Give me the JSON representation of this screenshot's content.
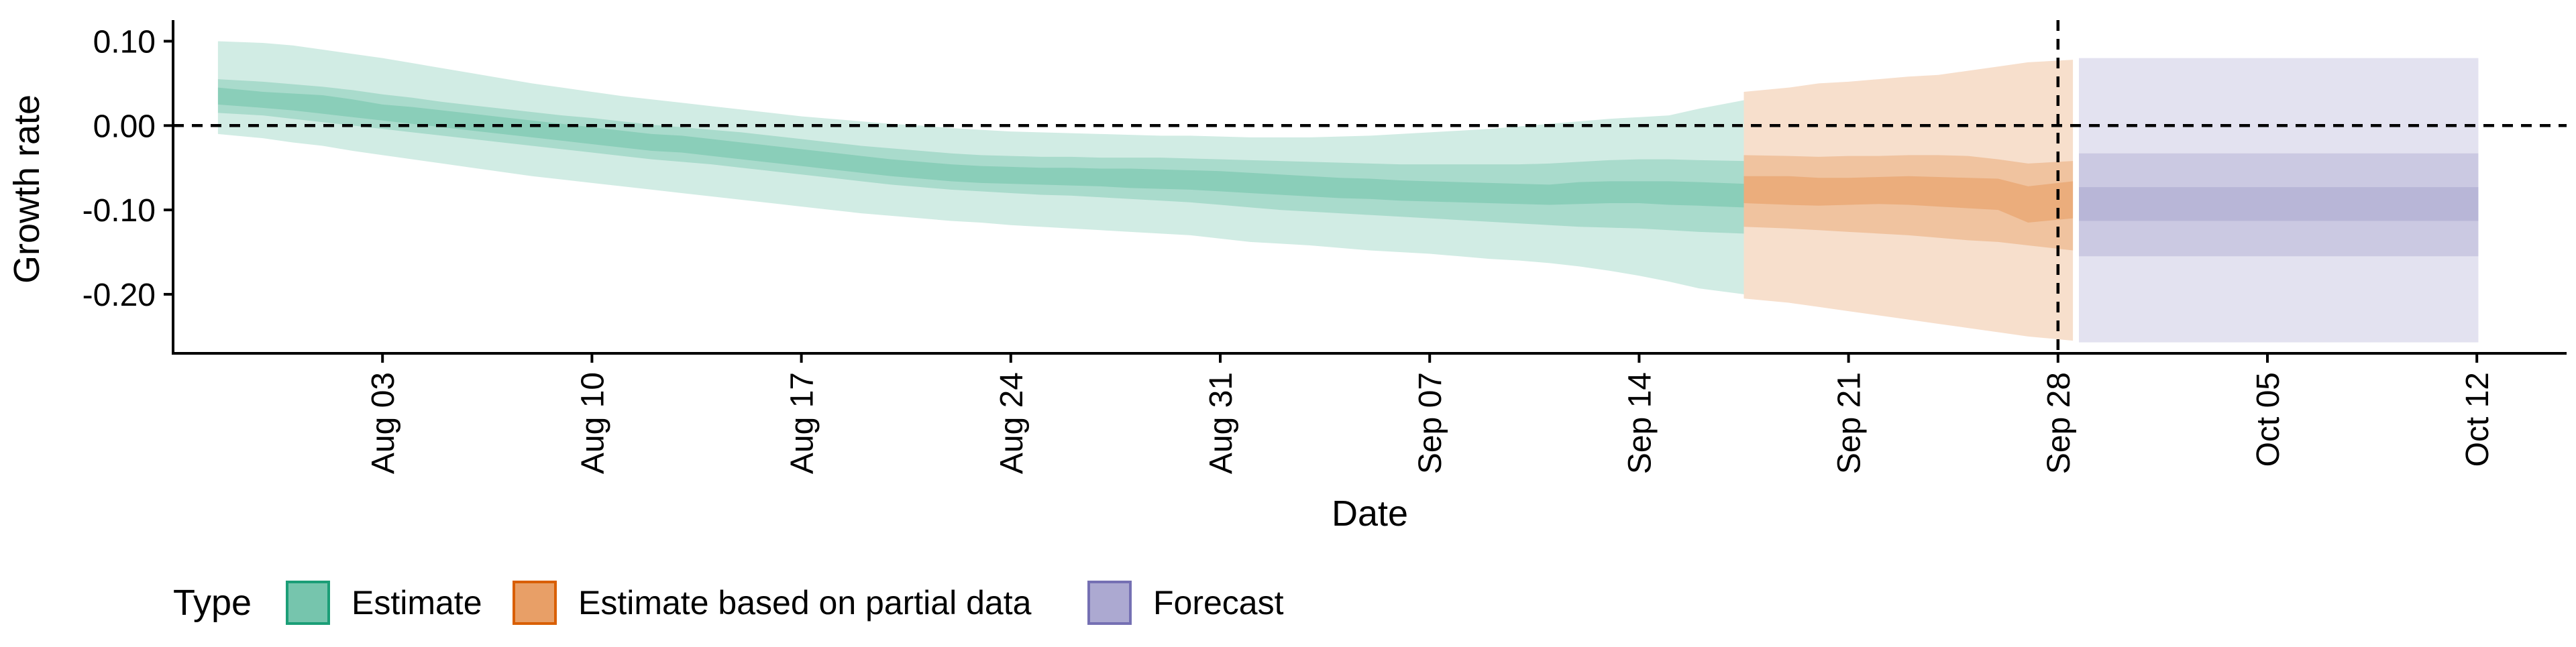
{
  "chart_data": {
    "type": "area",
    "title": "",
    "xlabel": "Date",
    "ylabel": "Growth rate",
    "x_ticks": [
      "2020-08-03",
      "2020-08-10",
      "2020-08-17",
      "2020-08-24",
      "2020-08-31",
      "2020-09-07",
      "2020-09-14",
      "2020-09-21",
      "2020-09-28",
      "2020-10-05",
      "2020-10-12"
    ],
    "x_tick_labels": [
      "Aug 03",
      "Aug 10",
      "Aug 17",
      "Aug 24",
      "Aug 31",
      "Sep 07",
      "Sep 14",
      "Sep 21",
      "Sep 28",
      "Oct 05",
      "Oct 12"
    ],
    "y_ticks": [
      0.1,
      0.0,
      -0.1,
      -0.2
    ],
    "y_tick_labels": [
      "0.10",
      "0.00",
      "-0.10",
      "-0.20"
    ],
    "xlim": [
      "2020-07-27",
      "2020-10-15"
    ],
    "ylim": [
      -0.27,
      0.125
    ],
    "reference_lines": [
      {
        "axis": "y",
        "value": 0.0,
        "style": "dashed"
      },
      {
        "axis": "x",
        "value": "2020-09-28",
        "style": "dashed"
      }
    ],
    "legend": {
      "title": "Type",
      "position": "bottom",
      "entries": [
        {
          "label": "Estimate",
          "color": "#1b9e77"
        },
        {
          "label": "Estimate based on partial data",
          "color": "#d95f02"
        },
        {
          "label": "Forecast",
          "color": "#7570b3"
        }
      ]
    },
    "grid": false,
    "series": [
      {
        "name": "Estimate",
        "color": "#1b9e77",
        "dates": [
          "2020-07-29",
          "2020-07-30",
          "2020-07-31",
          "2020-08-01",
          "2020-08-02",
          "2020-08-03",
          "2020-08-04",
          "2020-08-05",
          "2020-08-06",
          "2020-08-07",
          "2020-08-08",
          "2020-08-09",
          "2020-08-10",
          "2020-08-11",
          "2020-08-12",
          "2020-08-13",
          "2020-08-14",
          "2020-08-15",
          "2020-08-16",
          "2020-08-17",
          "2020-08-18",
          "2020-08-19",
          "2020-08-20",
          "2020-08-21",
          "2020-08-22",
          "2020-08-23",
          "2020-08-24",
          "2020-08-25",
          "2020-08-26",
          "2020-08-27",
          "2020-08-28",
          "2020-08-29",
          "2020-08-30",
          "2020-08-31",
          "2020-09-01",
          "2020-09-02",
          "2020-09-03",
          "2020-09-04",
          "2020-09-05",
          "2020-09-06",
          "2020-09-07",
          "2020-09-08",
          "2020-09-09",
          "2020-09-10",
          "2020-09-11",
          "2020-09-12",
          "2020-09-13",
          "2020-09-14",
          "2020-09-15",
          "2020-09-16",
          "2020-09-17"
        ],
        "median": [
          0.035,
          0.03,
          0.028,
          0.025,
          0.02,
          0.015,
          0.012,
          0.008,
          0.004,
          0.0,
          -0.004,
          -0.008,
          -0.012,
          -0.016,
          -0.02,
          -0.022,
          -0.026,
          -0.03,
          -0.034,
          -0.038,
          -0.042,
          -0.046,
          -0.05,
          -0.053,
          -0.056,
          -0.058,
          -0.059,
          -0.06,
          -0.06,
          -0.061,
          -0.062,
          -0.063,
          -0.064,
          -0.066,
          -0.068,
          -0.07,
          -0.072,
          -0.074,
          -0.075,
          -0.077,
          -0.078,
          -0.079,
          -0.08,
          -0.081,
          -0.082,
          -0.08,
          -0.079,
          -0.079,
          -0.08,
          -0.081,
          -0.083
        ],
        "lower_90": [
          -0.01,
          -0.015,
          -0.02,
          -0.024,
          -0.03,
          -0.035,
          -0.04,
          -0.045,
          -0.05,
          -0.055,
          -0.06,
          -0.064,
          -0.068,
          -0.072,
          -0.076,
          -0.08,
          -0.084,
          -0.088,
          -0.092,
          -0.096,
          -0.1,
          -0.104,
          -0.107,
          -0.11,
          -0.113,
          -0.115,
          -0.118,
          -0.12,
          -0.122,
          -0.124,
          -0.126,
          -0.128,
          -0.13,
          -0.134,
          -0.138,
          -0.14,
          -0.142,
          -0.145,
          -0.148,
          -0.15,
          -0.152,
          -0.155,
          -0.158,
          -0.16,
          -0.163,
          -0.167,
          -0.172,
          -0.178,
          -0.185,
          -0.193,
          -0.2
        ],
        "upper_90": [
          0.1,
          0.098,
          0.095,
          0.09,
          0.085,
          0.08,
          0.074,
          0.068,
          0.062,
          0.056,
          0.05,
          0.045,
          0.04,
          0.035,
          0.031,
          0.027,
          0.023,
          0.019,
          0.015,
          0.011,
          0.008,
          0.005,
          0.002,
          0.0,
          -0.003,
          -0.005,
          -0.007,
          -0.008,
          -0.009,
          -0.01,
          -0.011,
          -0.012,
          -0.012,
          -0.013,
          -0.014,
          -0.014,
          -0.014,
          -0.013,
          -0.012,
          -0.01,
          -0.008,
          -0.006,
          -0.004,
          -0.001,
          0.002,
          0.005,
          0.008,
          0.01,
          0.012,
          0.02,
          0.03
        ],
        "lower_50": [
          0.015,
          0.012,
          0.008,
          0.004,
          0.0,
          -0.004,
          -0.008,
          -0.012,
          -0.016,
          -0.02,
          -0.024,
          -0.028,
          -0.032,
          -0.036,
          -0.04,
          -0.043,
          -0.046,
          -0.05,
          -0.054,
          -0.058,
          -0.062,
          -0.066,
          -0.07,
          -0.073,
          -0.076,
          -0.078,
          -0.08,
          -0.082,
          -0.083,
          -0.085,
          -0.087,
          -0.089,
          -0.091,
          -0.094,
          -0.097,
          -0.1,
          -0.102,
          -0.104,
          -0.106,
          -0.108,
          -0.11,
          -0.112,
          -0.114,
          -0.116,
          -0.118,
          -0.12,
          -0.121,
          -0.122,
          -0.124,
          -0.126,
          -0.128
        ],
        "upper_50": [
          0.055,
          0.052,
          0.049,
          0.046,
          0.042,
          0.037,
          0.033,
          0.028,
          0.024,
          0.02,
          0.016,
          0.012,
          0.009,
          0.005,
          0.001,
          -0.002,
          -0.005,
          -0.008,
          -0.012,
          -0.016,
          -0.02,
          -0.024,
          -0.027,
          -0.03,
          -0.033,
          -0.035,
          -0.036,
          -0.037,
          -0.037,
          -0.038,
          -0.038,
          -0.038,
          -0.039,
          -0.04,
          -0.041,
          -0.042,
          -0.043,
          -0.044,
          -0.045,
          -0.046,
          -0.046,
          -0.046,
          -0.046,
          -0.046,
          -0.045,
          -0.043,
          -0.041,
          -0.04,
          -0.04,
          -0.041,
          -0.042
        ],
        "lower_20": [
          0.025,
          0.021,
          0.018,
          0.014,
          0.01,
          0.006,
          0.002,
          -0.002,
          -0.006,
          -0.01,
          -0.014,
          -0.018,
          -0.022,
          -0.026,
          -0.03,
          -0.032,
          -0.036,
          -0.04,
          -0.044,
          -0.048,
          -0.052,
          -0.056,
          -0.06,
          -0.063,
          -0.066,
          -0.068,
          -0.069,
          -0.07,
          -0.071,
          -0.072,
          -0.074,
          -0.075,
          -0.076,
          -0.078,
          -0.08,
          -0.082,
          -0.084,
          -0.086,
          -0.087,
          -0.089,
          -0.09,
          -0.091,
          -0.092,
          -0.093,
          -0.094,
          -0.093,
          -0.092,
          -0.092,
          -0.094,
          -0.095,
          -0.097
        ],
        "upper_20": [
          0.045,
          0.04,
          0.038,
          0.036,
          0.031,
          0.025,
          0.022,
          0.018,
          0.014,
          0.01,
          0.006,
          0.002,
          -0.002,
          -0.006,
          -0.01,
          -0.012,
          -0.016,
          -0.02,
          -0.024,
          -0.028,
          -0.032,
          -0.036,
          -0.04,
          -0.043,
          -0.046,
          -0.048,
          -0.049,
          -0.05,
          -0.05,
          -0.051,
          -0.051,
          -0.052,
          -0.053,
          -0.054,
          -0.056,
          -0.058,
          -0.06,
          -0.062,
          -0.063,
          -0.065,
          -0.066,
          -0.067,
          -0.068,
          -0.069,
          -0.07,
          -0.067,
          -0.066,
          -0.066,
          -0.066,
          -0.067,
          -0.069
        ]
      },
      {
        "name": "Estimate based on partial data",
        "color": "#d95f02",
        "dates": [
          "2020-09-18",
          "2020-09-19",
          "2020-09-20",
          "2020-09-21",
          "2020-09-22",
          "2020-09-23",
          "2020-09-24",
          "2020-09-25",
          "2020-09-26",
          "2020-09-27",
          "2020-09-28"
        ],
        "median": [
          -0.077,
          -0.078,
          -0.079,
          -0.079,
          -0.078,
          -0.078,
          -0.079,
          -0.08,
          -0.081,
          -0.093,
          -0.088
        ],
        "lower_90": [
          -0.205,
          -0.21,
          -0.215,
          -0.22,
          -0.225,
          -0.23,
          -0.235,
          -0.24,
          -0.245,
          -0.25,
          -0.255
        ],
        "upper_90": [
          0.04,
          0.045,
          0.05,
          0.052,
          0.055,
          0.058,
          0.06,
          0.065,
          0.07,
          0.075,
          0.078
        ],
        "lower_50": [
          -0.12,
          -0.122,
          -0.124,
          -0.126,
          -0.128,
          -0.13,
          -0.133,
          -0.136,
          -0.138,
          -0.142,
          -0.148
        ],
        "upper_50": [
          -0.035,
          -0.036,
          -0.037,
          -0.036,
          -0.036,
          -0.035,
          -0.035,
          -0.036,
          -0.04,
          -0.045,
          -0.042
        ],
        "lower_20": [
          -0.092,
          -0.094,
          -0.095,
          -0.094,
          -0.093,
          -0.094,
          -0.096,
          -0.098,
          -0.1,
          -0.115,
          -0.11
        ],
        "upper_20": [
          -0.06,
          -0.06,
          -0.062,
          -0.062,
          -0.061,
          -0.06,
          -0.061,
          -0.062,
          -0.063,
          -0.072,
          -0.066
        ]
      },
      {
        "name": "Forecast",
        "color": "#7570b3",
        "dates": [
          "2020-09-29",
          "2020-10-12"
        ],
        "median": [
          -0.093,
          -0.093
        ],
        "lower_90": [
          -0.257,
          -0.257
        ],
        "upper_90": [
          0.08,
          0.08
        ],
        "lower_50": [
          -0.155,
          -0.155
        ],
        "upper_50": [
          -0.033,
          -0.033
        ],
        "lower_20": [
          -0.113,
          -0.113
        ],
        "upper_20": [
          -0.073,
          -0.073
        ]
      }
    ]
  }
}
